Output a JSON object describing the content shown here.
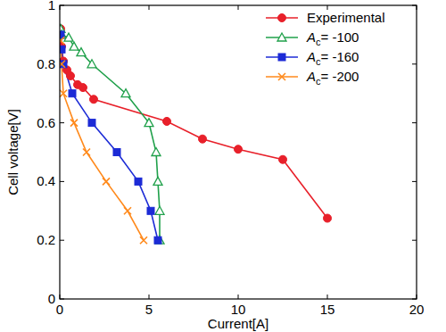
{
  "chart_data": {
    "type": "line",
    "x_label": "Current[A]",
    "y_label": "Cell voltage[V]",
    "xlim": [
      0,
      20
    ],
    "xticks": [
      0,
      5,
      10,
      15,
      20
    ],
    "ylim": [
      0,
      1
    ],
    "yticks": [
      0,
      0.2,
      0.4,
      0.6,
      0.8,
      1
    ],
    "grid": false,
    "legend": "top-right",
    "series": [
      {
        "name": "Experimental",
        "color": "#e8202a",
        "marker": "circle",
        "line_style": "solid",
        "x": [
          0.05,
          0.1,
          0.2,
          0.4,
          0.6,
          1.0,
          1.3,
          1.9,
          6,
          8,
          10,
          12.5,
          15
        ],
        "values": [
          0.92,
          0.86,
          0.81,
          0.78,
          0.76,
          0.73,
          0.72,
          0.68,
          0.605,
          0.545,
          0.51,
          0.475,
          0.275
        ]
      },
      {
        "name": "Ac= -100",
        "color": "#1fa04a",
        "marker": "triangle-open",
        "line_style": "solid",
        "x": [
          0.05,
          0.1,
          0.5,
          0.8,
          1.2,
          1.8,
          3.7,
          5.0,
          5.4,
          5.5,
          5.6,
          5.6
        ],
        "values": [
          0.92,
          0.9,
          0.89,
          0.86,
          0.84,
          0.8,
          0.7,
          0.6,
          0.5,
          0.4,
          0.3,
          0.2
        ]
      },
      {
        "name": "Ac= -160",
        "color": "#1c2bd6",
        "marker": "square",
        "line_style": "solid",
        "x": [
          0.05,
          0.1,
          0.2,
          0.7,
          1.8,
          3.2,
          4.4,
          5.1,
          5.5
        ],
        "values": [
          0.9,
          0.85,
          0.8,
          0.7,
          0.6,
          0.5,
          0.4,
          0.3,
          0.2
        ]
      },
      {
        "name": "Ac= -200",
        "color": "#ff8a1c",
        "marker": "x",
        "line_style": "solid",
        "x": [
          0.05,
          0.1,
          0.2,
          0.8,
          1.5,
          2.6,
          3.8,
          4.7
        ],
        "values": [
          0.88,
          0.8,
          0.7,
          0.6,
          0.5,
          0.4,
          0.3,
          0.2
        ]
      }
    ]
  }
}
